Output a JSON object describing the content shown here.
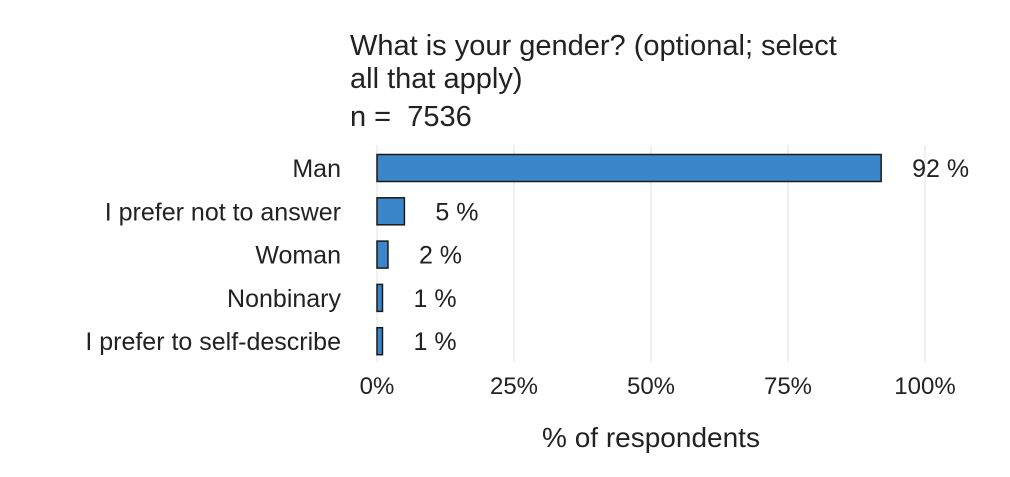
{
  "chart_data": {
    "type": "bar",
    "orientation": "horizontal",
    "title": "What is your gender? (optional; select all that apply)",
    "title_lines": [
      "What is your gender? (optional; select",
      "all that apply)"
    ],
    "subtitle": "n =  7536",
    "categories": [
      "Man",
      "I prefer not to answer",
      "Woman",
      "Nonbinary",
      "I prefer to self-describe"
    ],
    "values": [
      92,
      5,
      2,
      1,
      1
    ],
    "value_labels": [
      "92 %",
      "5 %",
      "2 %",
      "1 %",
      "1 %"
    ],
    "xlabel": "% of respondents",
    "ylabel": "",
    "xlim": [
      0,
      100
    ],
    "x_ticks": [
      0,
      25,
      50,
      75,
      100
    ],
    "x_tick_labels": [
      "0%",
      "25%",
      "50%",
      "75%",
      "100%"
    ],
    "grid": "vertical",
    "bar_color": "#3a86c8",
    "bar_edge_color": "#1a1a1a"
  }
}
